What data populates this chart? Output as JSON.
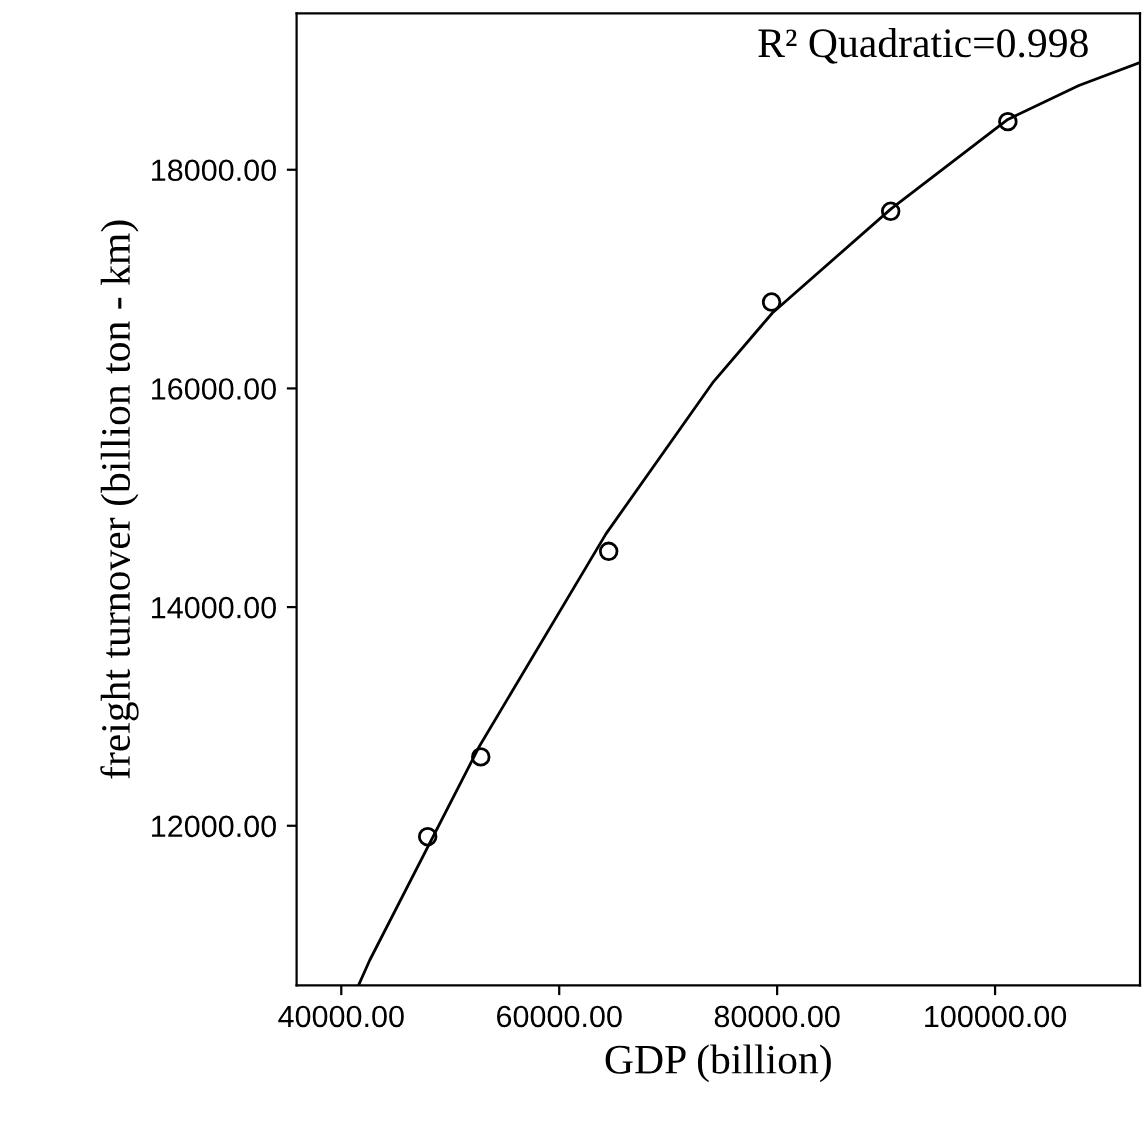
{
  "chart_data": {
    "type": "scatter",
    "xlabel": "GDP (billion)",
    "ylabel": "freight turnover (billion ton - km)",
    "annotations": [
      "R² Quadratic=0.998"
    ],
    "series": [
      {
        "color": "#000000",
        "marker": "circle",
        "x": [
          47930,
          52800,
          64540,
          79490,
          90420,
          101170
        ],
        "values": [
          11900,
          12630,
          14510,
          16790,
          17620,
          18440
        ]
      },
      {
        "type": "line",
        "color": "#000000",
        "marker": "none",
        "line_style": "solid",
        "x": [
          41580,
          42610,
          52690,
          64290,
          74070,
          79560,
          90420,
          101170,
          107690,
          113300
        ],
        "values": [
          10540,
          10770,
          12730,
          14670,
          16050,
          16690,
          17640,
          18460,
          18770,
          18980
        ]
      }
    ],
    "xlim": [
      35900,
      113300
    ],
    "ylim": [
      10540,
      19430
    ],
    "xticks": [
      {
        "value": 40000,
        "label": "40000.00"
      },
      {
        "value": 60000,
        "label": "60000.00"
      },
      {
        "value": 80000,
        "label": "80000.00"
      },
      {
        "value": 100000,
        "label": "100000.00"
      }
    ],
    "yticks": [
      {
        "value": 12000,
        "label": "12000.00"
      },
      {
        "value": 14000,
        "label": "14000.00"
      },
      {
        "value": 16000,
        "label": "16000.00"
      },
      {
        "value": 18000,
        "label": "18000.00"
      }
    ],
    "grid": false,
    "legend": false
  }
}
